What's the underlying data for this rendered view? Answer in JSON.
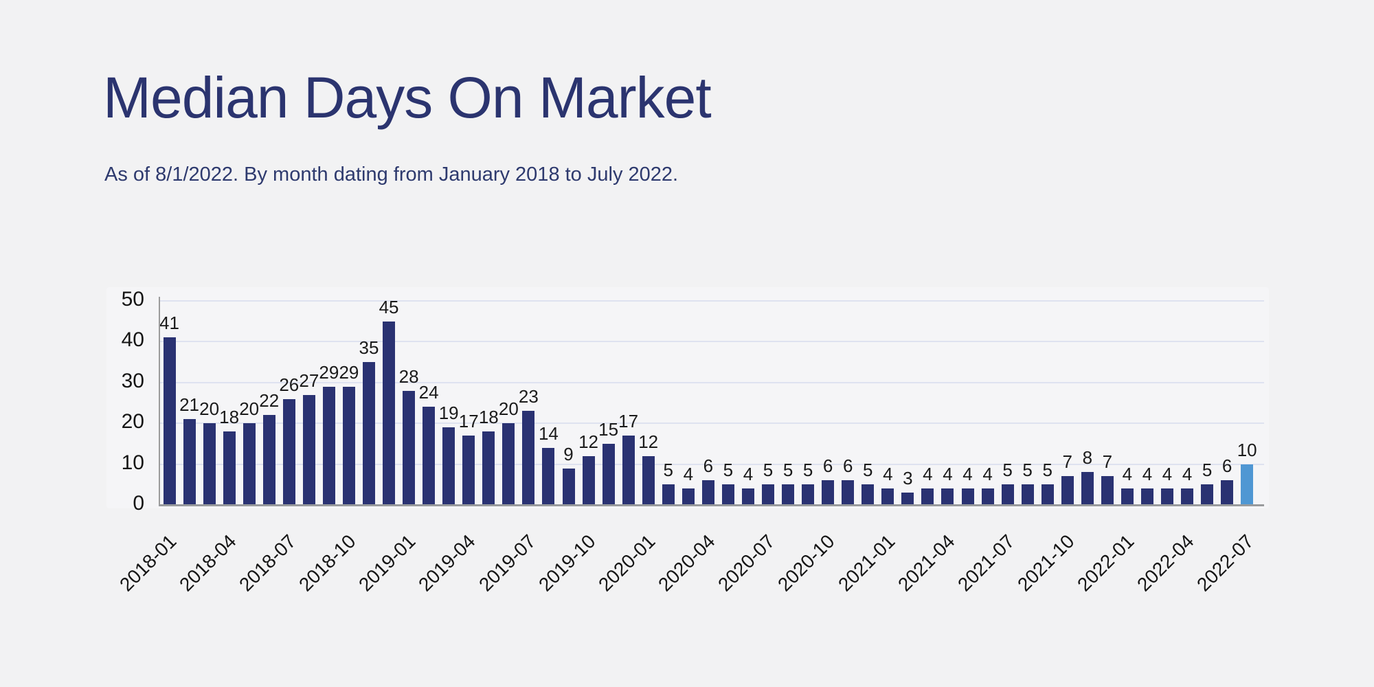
{
  "page": {
    "title": "Median Days On Market",
    "subtitle": "As of 8/1/2022. By month dating from January 2018 to July 2022."
  },
  "colors": {
    "background": "#f2f2f3",
    "title_navy": "#2b346f",
    "bar_navy": "#2a3272",
    "bar_highlight_blue": "#4f97d3",
    "gridline": "#dee2f0",
    "axis_gray": "#9b9b9b",
    "label_text": "#1b1b1b"
  },
  "chart_data": {
    "type": "bar",
    "title": "Median Days On Market",
    "subtitle": "As of 8/1/2022. By month dating from January 2018 to July 2022.",
    "xlabel": "",
    "ylabel": "",
    "ylim": [
      0,
      50
    ],
    "y_ticks": [
      0,
      10,
      20,
      30,
      40,
      50
    ],
    "grid": true,
    "legend": "none",
    "categories": [
      "2018-01",
      "2018-02",
      "2018-03",
      "2018-04",
      "2018-05",
      "2018-06",
      "2018-07",
      "2018-08",
      "2018-09",
      "2018-10",
      "2018-11",
      "2018-12",
      "2019-01",
      "2019-02",
      "2019-03",
      "2019-04",
      "2019-05",
      "2019-06",
      "2019-07",
      "2019-08",
      "2019-09",
      "2019-10",
      "2019-11",
      "2019-12",
      "2020-01",
      "2020-02",
      "2020-03",
      "2020-04",
      "2020-05",
      "2020-06",
      "2020-07",
      "2020-08",
      "2020-09",
      "2020-10",
      "2020-11",
      "2020-12",
      "2021-01",
      "2021-02",
      "2021-03",
      "2021-04",
      "2021-05",
      "2021-06",
      "2021-07",
      "2021-08",
      "2021-09",
      "2021-10",
      "2021-11",
      "2021-12",
      "2022-01",
      "2022-02",
      "2022-03",
      "2022-04",
      "2022-05",
      "2022-06",
      "2022-07"
    ],
    "values": [
      41,
      21,
      20,
      18,
      20,
      22,
      26,
      27,
      29,
      29,
      35,
      45,
      28,
      24,
      19,
      17,
      18,
      20,
      23,
      14,
      9,
      12,
      15,
      17,
      12,
      5,
      4,
      6,
      5,
      4,
      5,
      5,
      5,
      6,
      6,
      5,
      4,
      3,
      4,
      4,
      4,
      4,
      5,
      5,
      5,
      7,
      8,
      7,
      4,
      4,
      4,
      4,
      5,
      6,
      10
    ],
    "x_tick_labels": [
      "2018-01",
      "2018-04",
      "2018-07",
      "2018-10",
      "2019-01",
      "2019-04",
      "2019-07",
      "2019-10",
      "2020-01",
      "2020-04",
      "2020-07",
      "2020-10",
      "2021-01",
      "2021-04",
      "2021-07",
      "2021-10",
      "2022-01",
      "2022-04",
      "2022-07"
    ],
    "x_tick_every": 3,
    "bar_color": "#2a3272",
    "highlight_color": "#4f97d3",
    "highlight_index": 54
  }
}
